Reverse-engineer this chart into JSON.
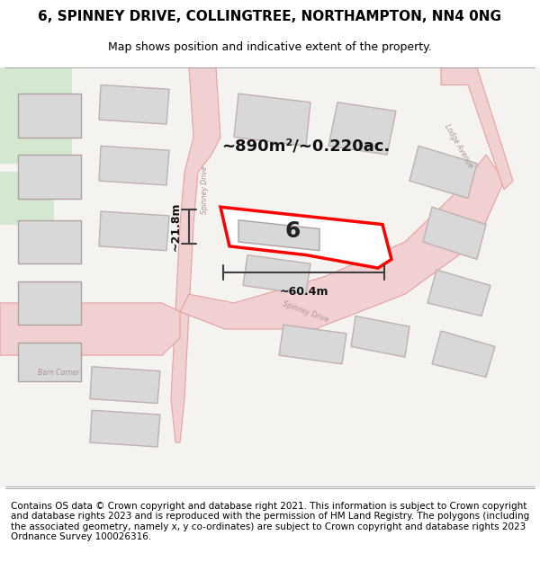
{
  "title": "6, SPINNEY DRIVE, COLLINGTREE, NORTHAMPTON, NN4 0NG",
  "subtitle": "Map shows position and indicative extent of the property.",
  "footer": "Contains OS data © Crown copyright and database right 2021. This information is subject to Crown copyright and database rights 2023 and is reproduced with the permission of HM Land Registry. The polygons (including the associated geometry, namely x, y co-ordinates) are subject to Crown copyright and database rights 2023 Ordnance Survey 100026316.",
  "area_label": "~890m²/~0.220ac.",
  "width_label": "~60.4m",
  "height_label": "~21.8m",
  "property_number": "6",
  "bg_color": "#ffffff",
  "map_bg": "#f5f3f0",
  "road_color": "#e8b8b8",
  "road_fill": "#f0d0d0",
  "building_fill": "#d8d8d8",
  "building_edge": "#c0b0b0",
  "highlight_fill": "#ffffff",
  "highlight_edge": "#ff0000",
  "green_area": "#d8e8d0",
  "dimension_color": "#404040",
  "title_fontsize": 11,
  "subtitle_fontsize": 9,
  "footer_fontsize": 7.5
}
